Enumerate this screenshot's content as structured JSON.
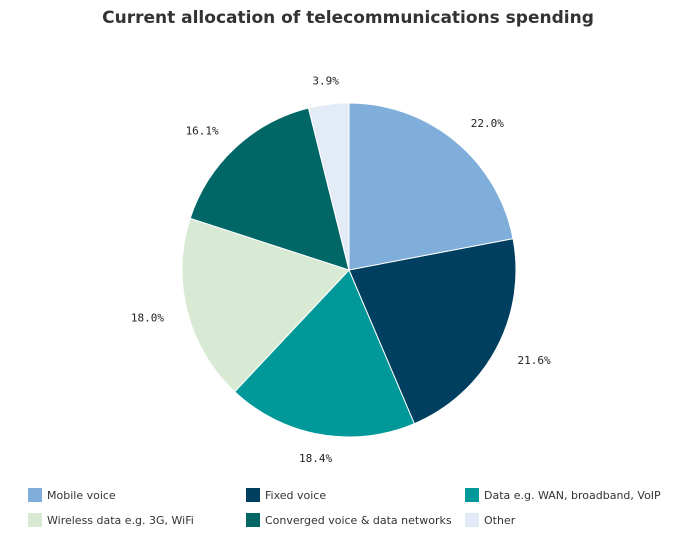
{
  "chart_data": {
    "type": "pie",
    "title": "Current allocation of telecommunications spending",
    "legend_position": "bottom",
    "slices": [
      {
        "name": "Mobile voice",
        "value": 22.0,
        "label": "22.0%",
        "color": "#7eaed9"
      },
      {
        "name": "Fixed voice",
        "value": 21.6,
        "label": "21.6%",
        "color": "#003f5f"
      },
      {
        "name": "Data e.g. WAN, broadband, VoIP",
        "value": 18.4,
        "label": "18.4%",
        "color": "#009898"
      },
      {
        "name": "Wireless data e.g. 3G, WiFi",
        "value": 18.0,
        "label": "18.0%",
        "color": "#d8ead4"
      },
      {
        "name": "Converged voice & data networks",
        "value": 16.1,
        "label": "16.1%",
        "color": "#006666"
      },
      {
        "name": "Other",
        "value": 3.9,
        "label": "3.9%",
        "color": "#e3ebf6"
      }
    ]
  }
}
